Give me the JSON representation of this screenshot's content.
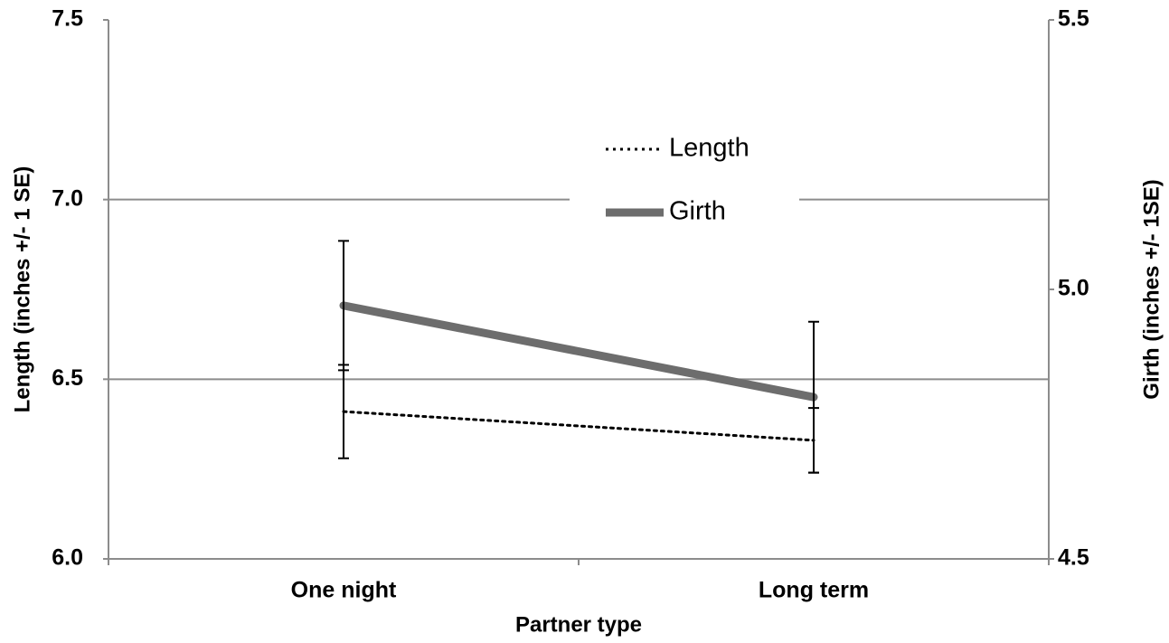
{
  "chart_data": {
    "type": "line",
    "x_label": "Partner type",
    "y_label": "Length (inches +/- 1 SE)",
    "y2_label": "Girth (inches +/- 1SE)",
    "categories": [
      "One night",
      "Long term"
    ],
    "series": [
      {
        "name": "Length",
        "color": "#000000",
        "line_style": "dotted",
        "axis": "y",
        "values": [
          6.41,
          6.33
        ],
        "errors": [
          0.13,
          0.09
        ]
      },
      {
        "name": "Girth",
        "color": "#6d6d6d",
        "line_style": "solid",
        "axis": "y2",
        "values": [
          4.97,
          4.8
        ],
        "errors": [
          0.12,
          0.14
        ]
      }
    ],
    "ylim": [
      6.0,
      7.5
    ],
    "yticks": [
      {
        "value": 6.0,
        "label": "6.0"
      },
      {
        "value": 6.5,
        "label": "6.5"
      },
      {
        "value": 7.0,
        "label": "7.0"
      },
      {
        "value": 7.5,
        "label": "7.5"
      }
    ],
    "y2lim": [
      4.5,
      5.5
    ],
    "y2ticks": [
      {
        "value": 4.5,
        "label": "4.5"
      },
      {
        "value": 5.0,
        "label": "5.0"
      },
      {
        "value": 5.5,
        "label": "5.5"
      }
    ],
    "grid": true,
    "legend": "center"
  }
}
